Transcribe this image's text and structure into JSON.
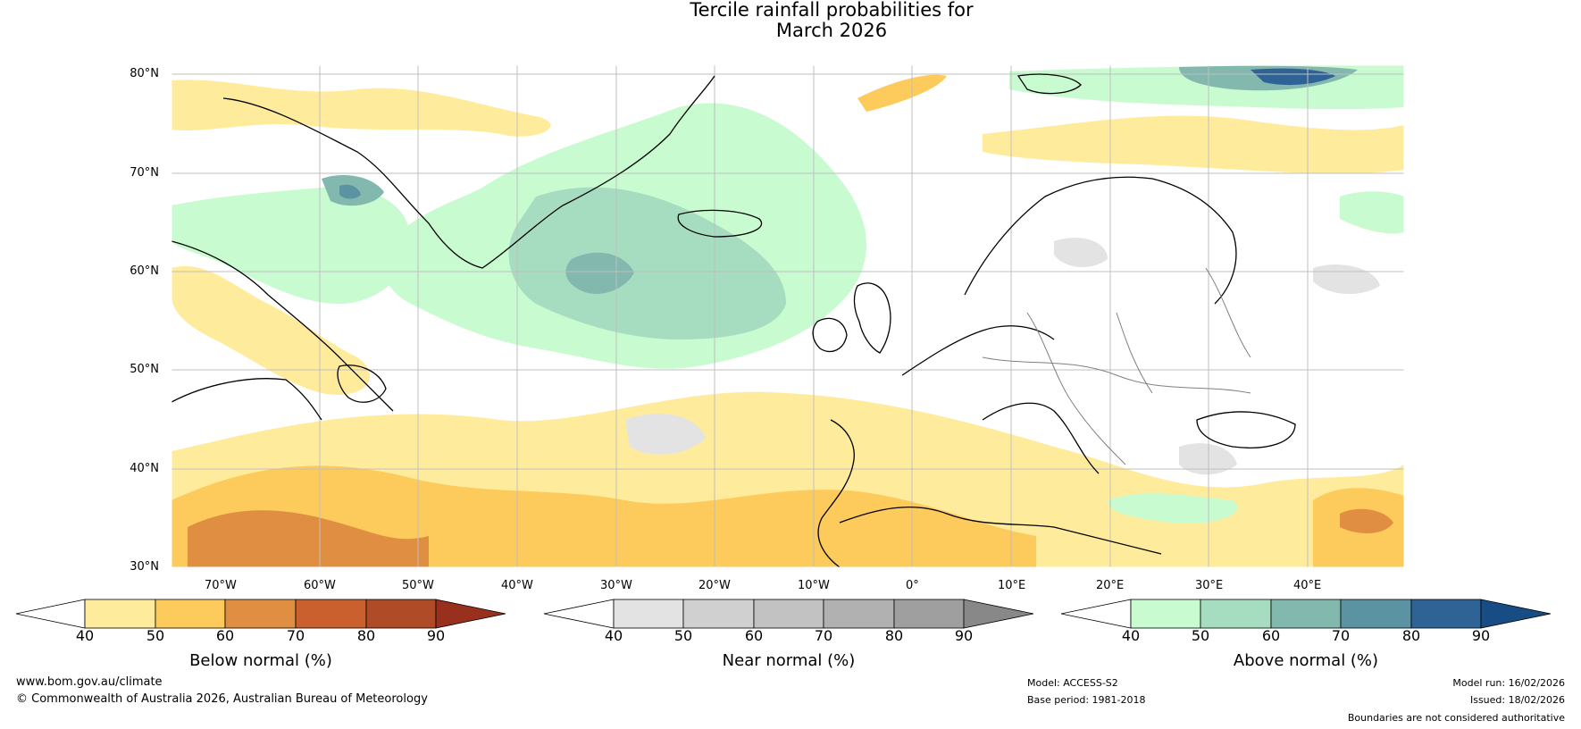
{
  "title": {
    "line1": "Tercile rainfall probabilities for",
    "line2": "March 2026"
  },
  "map": {
    "type": "tercile-probability-map",
    "region": "North Atlantic and Europe",
    "lat_labels": [
      "80°N",
      "70°N",
      "60°N",
      "50°N",
      "40°N",
      "30°N"
    ],
    "lon_labels": [
      "70°W",
      "60°W",
      "50°W",
      "40°W",
      "30°W",
      "20°W",
      "10°W",
      "0°",
      "10°E",
      "20°E",
      "30°E",
      "40°E"
    ],
    "colors": {
      "water_border": "#000000",
      "country_border": "#808080",
      "grid": "#bfbfbf"
    }
  },
  "colorbars": [
    {
      "id": "below",
      "title": "Below normal (%)",
      "ticks": [
        "40",
        "50",
        "60",
        "70",
        "80",
        "90"
      ],
      "colors": [
        "#ffffff",
        "#ffeb9c",
        "#fdca5c",
        "#e08f42",
        "#c9602e",
        "#b04b27",
        "#98301d"
      ]
    },
    {
      "id": "near",
      "title": "Near normal (%)",
      "ticks": [
        "40",
        "50",
        "60",
        "70",
        "80",
        "90"
      ],
      "colors": [
        "#ffffff",
        "#e3e3e3",
        "#d0d0d0",
        "#c2c2c2",
        "#b1b1b1",
        "#9f9f9f",
        "#888888"
      ]
    },
    {
      "id": "above",
      "title": "Above normal (%)",
      "ticks": [
        "40",
        "50",
        "60",
        "70",
        "80",
        "90"
      ],
      "colors": [
        "#ffffff",
        "#c9fbd0",
        "#a6dcc0",
        "#82b8ae",
        "#5c93a2",
        "#2f6396",
        "#174c85"
      ]
    }
  ],
  "footer": {
    "site": "www.bom.gov.au/climate",
    "copyright": "© Commonwealth of Australia 2026, Australian Bureau of Meteorology",
    "model": "Model: ACCESS-S2",
    "base_period": "Base period: 1981-2018",
    "model_run": "Model run: 16/02/2026",
    "issued": "Issued: 18/02/2026",
    "disclaimer": "Boundaries are not considered authoritative"
  }
}
